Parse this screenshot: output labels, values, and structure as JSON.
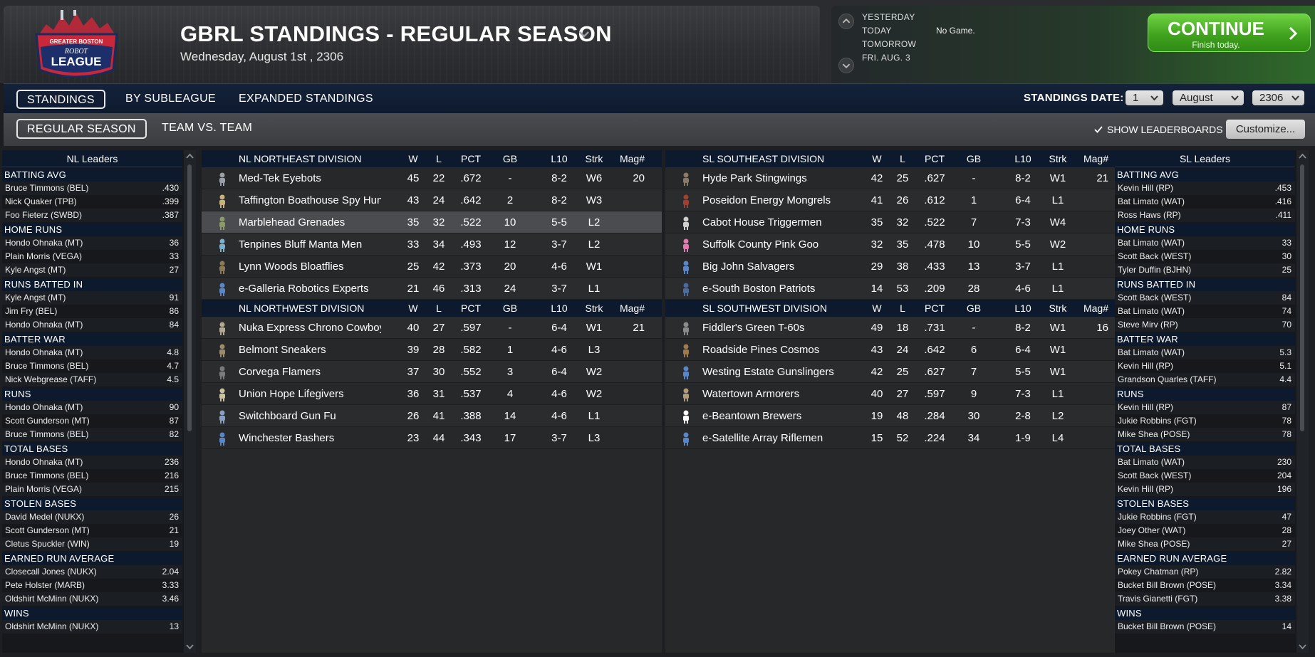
{
  "header": {
    "logo_text": [
      "GREATER BOSTON",
      "ROBOT",
      "LEAGUE"
    ],
    "title": "GBRL STANDINGS - REGULAR SEASON",
    "date": "Wednesday, August 1st , 2306"
  },
  "schedule": {
    "yesterday": "YESTERDAY",
    "today": "TODAY",
    "tomorrow": "TOMORROW",
    "next": "FRI. AUG. 3",
    "today_status": "No Game.",
    "continue_label": "CONTINUE",
    "continue_sub": "Finish today."
  },
  "nav1": {
    "tabs": [
      "STANDINGS",
      "BY SUBLEAGUE",
      "EXPANDED STANDINGS"
    ],
    "date_label": "STANDINGS DATE:",
    "day": "1",
    "month": "August",
    "year": "2306"
  },
  "nav2": {
    "tabs": [
      "REGULAR SEASON",
      "TEAM VS. TEAM"
    ],
    "show_leaderboards": "SHOW LEADERBOARDS",
    "customize": "Customize..."
  },
  "columns": [
    "W",
    "L",
    "PCT",
    "GB",
    "L10",
    "Strk",
    "Mag#"
  ],
  "divisions_nl": [
    {
      "name": "NL NORTHEAST DIVISION",
      "teams": [
        {
          "name": "Med-Tek Eyebots",
          "w": "45",
          "l": "22",
          "pct": ".672",
          "gb": "-",
          "l10": "8-2",
          "strk": "W6",
          "mag": "20",
          "color": "#9aa0a6"
        },
        {
          "name": "Taffington Boathouse Spy Hun",
          "w": "43",
          "l": "24",
          "pct": ".642",
          "gb": "2",
          "l10": "8-2",
          "strk": "W3",
          "mag": "",
          "color": "#c8b27a"
        },
        {
          "name": "Marblehead Grenades",
          "w": "35",
          "l": "32",
          "pct": ".522",
          "gb": "10",
          "l10": "5-5",
          "strk": "L2",
          "mag": "",
          "color": "#8a9a6a"
        },
        {
          "name": "Tenpines Bluff Manta Men",
          "w": "33",
          "l": "34",
          "pct": ".493",
          "gb": "12",
          "l10": "3-7",
          "strk": "L2",
          "mag": "",
          "color": "#7ab0c8"
        },
        {
          "name": "Lynn Woods Bloatflies",
          "w": "25",
          "l": "42",
          "pct": ".373",
          "gb": "20",
          "l10": "4-6",
          "strk": "W1",
          "mag": "",
          "color": "#8a7a5a"
        },
        {
          "name": "e-Galleria Robotics Experts",
          "w": "21",
          "l": "46",
          "pct": ".313",
          "gb": "24",
          "l10": "3-7",
          "strk": "L1",
          "mag": "",
          "color": "#5a86c8"
        }
      ]
    },
    {
      "name": "NL NORTHWEST DIVISION",
      "teams": [
        {
          "name": "Nuka Express Chrono Cowboy",
          "w": "40",
          "l": "27",
          "pct": ".597",
          "gb": "-",
          "l10": "6-4",
          "strk": "W1",
          "mag": "21",
          "color": "#b0a890"
        },
        {
          "name": "Belmont Sneakers",
          "w": "39",
          "l": "28",
          "pct": ".582",
          "gb": "1",
          "l10": "4-6",
          "strk": "L3",
          "mag": "",
          "color": "#9a8a6a"
        },
        {
          "name": "Corvega Flamers",
          "w": "37",
          "l": "30",
          "pct": ".552",
          "gb": "3",
          "l10": "6-4",
          "strk": "W2",
          "mag": "",
          "color": "#7a7a7a"
        },
        {
          "name": "Union Hope Lifegivers",
          "w": "36",
          "l": "31",
          "pct": ".537",
          "gb": "4",
          "l10": "4-6",
          "strk": "W2",
          "mag": "",
          "color": "#c8c0a0"
        },
        {
          "name": "Switchboard Gun Fu",
          "w": "26",
          "l": "41",
          "pct": ".388",
          "gb": "14",
          "l10": "4-6",
          "strk": "L1",
          "mag": "",
          "color": "#8aa0c0"
        },
        {
          "name": "Winchester Bashers",
          "w": "23",
          "l": "44",
          "pct": ".343",
          "gb": "17",
          "l10": "3-7",
          "strk": "L3",
          "mag": "",
          "color": "#5a86c8"
        }
      ]
    }
  ],
  "divisions_sl": [
    {
      "name": "SL SOUTHEAST DIVISION",
      "teams": [
        {
          "name": "Hyde Park Stingwings",
          "w": "42",
          "l": "25",
          "pct": ".627",
          "gb": "-",
          "l10": "8-2",
          "strk": "W1",
          "mag": "21",
          "color": "#8a7a6a"
        },
        {
          "name": "Poseidon Energy Mongrels",
          "w": "41",
          "l": "26",
          "pct": ".612",
          "gb": "1",
          "l10": "6-4",
          "strk": "L1",
          "mag": "",
          "color": "#a04030"
        },
        {
          "name": "Cabot House Triggermen",
          "w": "35",
          "l": "32",
          "pct": ".522",
          "gb": "7",
          "l10": "7-3",
          "strk": "W4",
          "mag": "",
          "color": "#cfcfcf"
        },
        {
          "name": "Suffolk County Pink Goo",
          "w": "32",
          "l": "35",
          "pct": ".478",
          "gb": "10",
          "l10": "5-5",
          "strk": "W2",
          "mag": "",
          "color": "#e07ab0"
        },
        {
          "name": "Big John Salvagers",
          "w": "29",
          "l": "38",
          "pct": ".433",
          "gb": "13",
          "l10": "3-7",
          "strk": "L1",
          "mag": "",
          "color": "#5a86c8"
        },
        {
          "name": "e-South Boston Patriots",
          "w": "14",
          "l": "53",
          "pct": ".209",
          "gb": "28",
          "l10": "4-6",
          "strk": "L1",
          "mag": "",
          "color": "#4a6aa0"
        }
      ]
    },
    {
      "name": "SL SOUTHWEST DIVISION",
      "teams": [
        {
          "name": "Fiddler's Green T-60s",
          "w": "49",
          "l": "18",
          "pct": ".731",
          "gb": "-",
          "l10": "8-2",
          "strk": "W1",
          "mag": "16",
          "color": "#8a8a8a"
        },
        {
          "name": "Roadside Pines Cosmos",
          "w": "43",
          "l": "24",
          "pct": ".642",
          "gb": "6",
          "l10": "6-4",
          "strk": "W1",
          "mag": "",
          "color": "#a07a4a"
        },
        {
          "name": "Westing Estate Gunslingers",
          "w": "42",
          "l": "25",
          "pct": ".627",
          "gb": "7",
          "l10": "5-5",
          "strk": "W1",
          "mag": "",
          "color": "#5a86c8"
        },
        {
          "name": "Watertown Armorers",
          "w": "40",
          "l": "27",
          "pct": ".597",
          "gb": "9",
          "l10": "7-3",
          "strk": "L1",
          "mag": "",
          "color": "#b09a7a"
        },
        {
          "name": "e-Beantown Brewers",
          "w": "19",
          "l": "48",
          "pct": ".284",
          "gb": "30",
          "l10": "2-8",
          "strk": "L2",
          "mag": "",
          "color": "#ffffff"
        },
        {
          "name": "e-Satellite Array Riflemen",
          "w": "15",
          "l": "52",
          "pct": ".224",
          "gb": "34",
          "l10": "1-9",
          "strk": "L4",
          "mag": "",
          "color": "#5a86c8"
        }
      ]
    }
  ],
  "nl_leaders": {
    "title": "NL Leaders",
    "categories": [
      {
        "name": "BATTING AVG",
        "rows": [
          [
            "Bruce Timmons (BEL)",
            ".430"
          ],
          [
            "Nick Quaker (TPB)",
            ".399"
          ],
          [
            "Foo Fieterz (SWBD)",
            ".387"
          ]
        ]
      },
      {
        "name": "HOME RUNS",
        "rows": [
          [
            "Hondo Ohnaka (MT)",
            "36"
          ],
          [
            "Plain Morris (VEGA)",
            "33"
          ],
          [
            "Kyle Angst (MT)",
            "27"
          ]
        ]
      },
      {
        "name": "RUNS BATTED IN",
        "rows": [
          [
            "Kyle Angst (MT)",
            "91"
          ],
          [
            "Jim Fry (BEL)",
            "86"
          ],
          [
            "Hondo Ohnaka (MT)",
            "84"
          ]
        ]
      },
      {
        "name": "BATTER WAR",
        "rows": [
          [
            "Hondo Ohnaka (MT)",
            "4.8"
          ],
          [
            "Bruce Timmons (BEL)",
            "4.7"
          ],
          [
            "Nick Webgrease (TAFF)",
            "4.5"
          ]
        ]
      },
      {
        "name": "RUNS",
        "rows": [
          [
            "Hondo Ohnaka (MT)",
            "90"
          ],
          [
            "Scott Gunderson (MT)",
            "87"
          ],
          [
            "Bruce Timmons (BEL)",
            "82"
          ]
        ]
      },
      {
        "name": "TOTAL BASES",
        "rows": [
          [
            "Hondo Ohnaka (MT)",
            "236"
          ],
          [
            "Bruce Timmons (BEL)",
            "216"
          ],
          [
            "Plain Morris (VEGA)",
            "215"
          ]
        ]
      },
      {
        "name": "STOLEN BASES",
        "rows": [
          [
            "David Medel (NUKX)",
            "26"
          ],
          [
            "Scott Gunderson (MT)",
            "21"
          ],
          [
            "Cletus Spuckler (WIN)",
            "19"
          ]
        ]
      },
      {
        "name": "EARNED RUN AVERAGE",
        "rows": [
          [
            "Closecall Jones (NUKX)",
            "2.04"
          ],
          [
            "Pete Holster (MARB)",
            "3.33"
          ],
          [
            "Oldshirt McMinn (NUKX)",
            "3.46"
          ]
        ]
      },
      {
        "name": "WINS",
        "rows": [
          [
            "Oldshirt McMinn (NUKX)",
            "13"
          ]
        ]
      }
    ]
  },
  "sl_leaders": {
    "title": "SL Leaders",
    "categories": [
      {
        "name": "BATTING AVG",
        "rows": [
          [
            "Kevin Hill (RP)",
            ".453"
          ],
          [
            "Bat Limato (WAT)",
            ".416"
          ],
          [
            "Ross Haws (RP)",
            ".411"
          ]
        ]
      },
      {
        "name": "HOME RUNS",
        "rows": [
          [
            "Bat Limato (WAT)",
            "33"
          ],
          [
            "Scott Back (WEST)",
            "30"
          ],
          [
            "Tyler Duffin (BJHN)",
            "25"
          ]
        ]
      },
      {
        "name": "RUNS BATTED IN",
        "rows": [
          [
            "Scott Back (WEST)",
            "84"
          ],
          [
            "Bat Limato (WAT)",
            "74"
          ],
          [
            "Steve Mirv (RP)",
            "70"
          ]
        ]
      },
      {
        "name": "BATTER WAR",
        "rows": [
          [
            "Bat Limato (WAT)",
            "5.3"
          ],
          [
            "Kevin Hill (RP)",
            "5.1"
          ],
          [
            "Grandson Quarles (TAFF)",
            "4.4"
          ]
        ]
      },
      {
        "name": "RUNS",
        "rows": [
          [
            "Kevin Hill (RP)",
            "87"
          ],
          [
            "Jukie Robbins (FGT)",
            "78"
          ],
          [
            "Mike Shea (POSE)",
            "78"
          ]
        ]
      },
      {
        "name": "TOTAL BASES",
        "rows": [
          [
            "Bat Limato (WAT)",
            "230"
          ],
          [
            "Scott Back (WEST)",
            "204"
          ],
          [
            "Kevin Hill (RP)",
            "196"
          ]
        ]
      },
      {
        "name": "STOLEN BASES",
        "rows": [
          [
            "Jukie Robbins (FGT)",
            "47"
          ],
          [
            "Joey Other (WAT)",
            "28"
          ],
          [
            "Mike Shea (POSE)",
            "27"
          ]
        ]
      },
      {
        "name": "EARNED RUN AVERAGE",
        "rows": [
          [
            "Pokey Chatman (RP)",
            "2.82"
          ],
          [
            "Bucket Bill Brown (POSE)",
            "3.34"
          ],
          [
            "Travis Gianetti (FGT)",
            "3.38"
          ]
        ]
      },
      {
        "name": "WINS",
        "rows": [
          [
            "Bucket Bill Brown (POSE)",
            "14"
          ]
        ]
      }
    ]
  },
  "highlight_team": "Marblehead Grenades"
}
